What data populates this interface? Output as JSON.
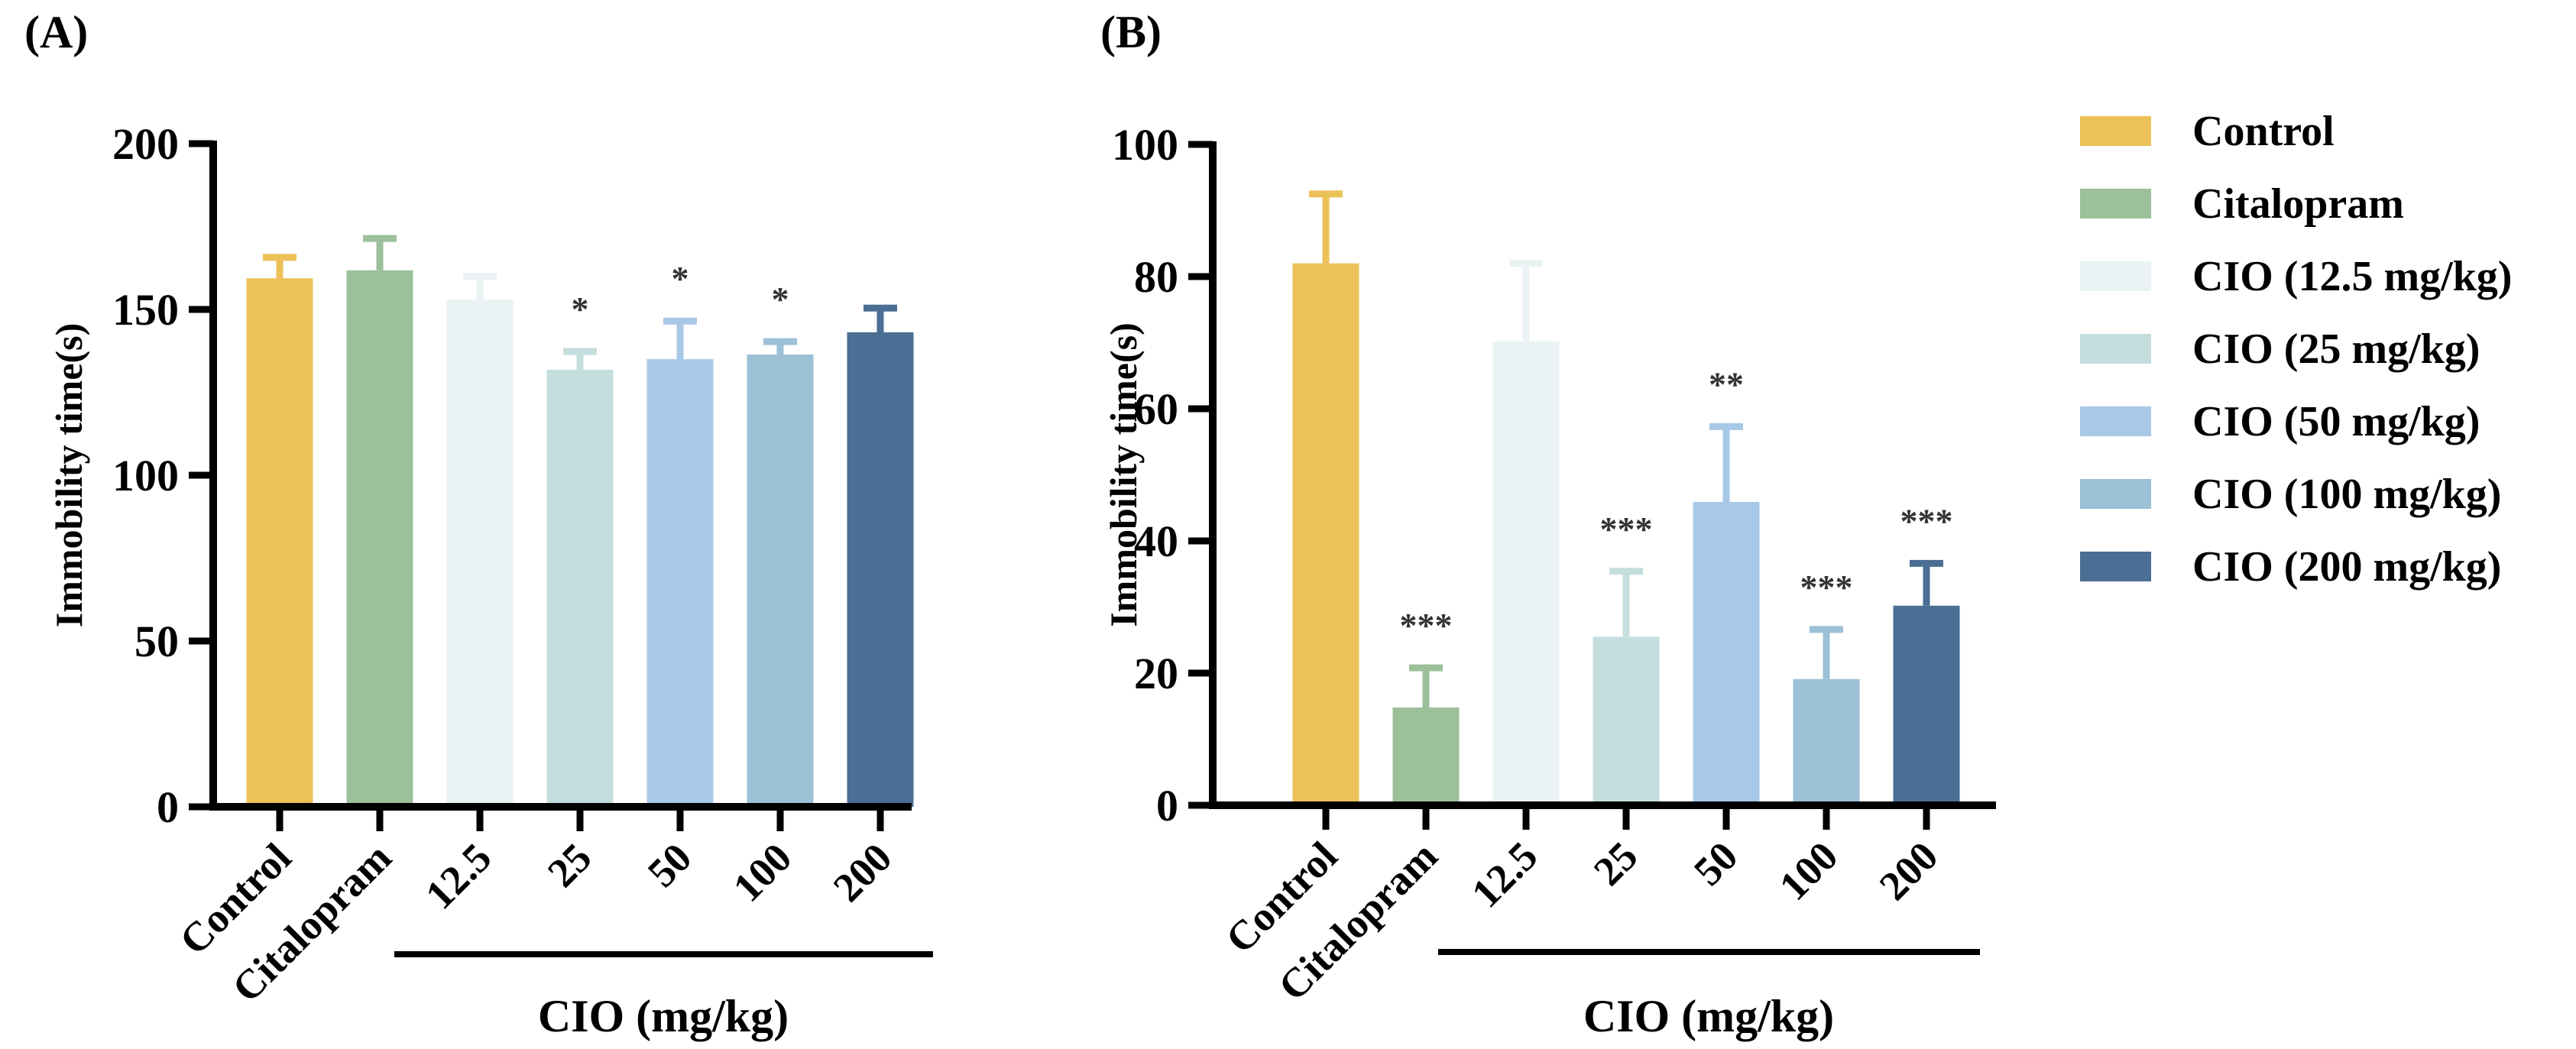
{
  "panels": [
    {
      "panel_label": "(A)",
      "ylabel": "Immobility time(s)",
      "group_label": "CIO (mg/kg)"
    },
    {
      "panel_label": "(B)",
      "ylabel": "Immobility time(s)",
      "group_label": "CIO (mg/kg)"
    }
  ],
  "legend": {
    "placement": "right",
    "entries": [
      "Control",
      "Citalopram",
      "CIO (12.5 mg/kg)",
      "CIO (25 mg/kg)",
      "CIO (50 mg/kg)",
      "CIO (100 mg/kg)",
      "CIO (200 mg/kg)"
    ]
  },
  "colors": [
    "#EBC158",
    "#9BC09A",
    "#EAF2F3",
    "#C4DEDD",
    "#A8C8E8",
    "#9CC0D5",
    "#4A6E94"
  ],
  "chart_data": [
    {
      "type": "bar",
      "title": "(A)",
      "xlabel": "CIO (mg/kg)",
      "ylabel": "Immobility time(s)",
      "categories": [
        "Control",
        "Citalopram",
        "12.5",
        "25",
        "50",
        "100",
        "200"
      ],
      "values": [
        159.4,
        161.8,
        153,
        131.8,
        135,
        136.4,
        143.1
      ],
      "error": [
        6.3,
        9.6,
        7,
        5.5,
        11.5,
        3.9,
        7.3
      ],
      "significance": [
        "",
        "",
        "",
        "*",
        "*",
        "*",
        ""
      ],
      "ylim": [
        0,
        200
      ],
      "yticks": [
        0,
        50,
        100,
        150,
        200
      ],
      "grid": false
    },
    {
      "type": "bar",
      "title": "(B)",
      "xlabel": "CIO (mg/kg)",
      "ylabel": "Immobility time(s)",
      "categories": [
        "Control",
        "Citalopram",
        "12.5",
        "25",
        "50",
        "100",
        "200"
      ],
      "values": [
        82,
        14.8,
        70.2,
        25.5,
        45.9,
        19.1,
        30.2
      ],
      "error": [
        10.5,
        6,
        11.8,
        9.9,
        11.4,
        7.5,
        6.4
      ],
      "significance": [
        "",
        "***",
        "",
        "***",
        "**",
        "***",
        "***"
      ],
      "ylim": [
        0,
        100
      ],
      "yticks": [
        0,
        20,
        40,
        60,
        80,
        100
      ],
      "grid": false
    }
  ]
}
